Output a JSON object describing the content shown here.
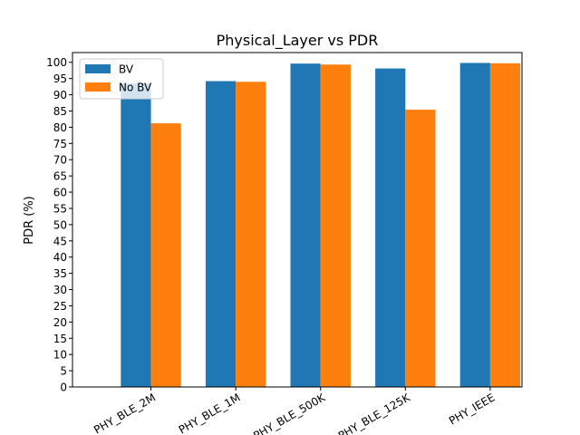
{
  "chart_data": {
    "type": "bar",
    "title": "Physical_Layer vs PDR",
    "xlabel": "",
    "ylabel": "PDR (%)",
    "categories": [
      "PHY_BLE_2M",
      "PHY_BLE_1M",
      "PHY_BLE_500K",
      "PHY_BLE_125K",
      "PHY_IEEE"
    ],
    "series": [
      {
        "name": "BV",
        "color": "#1f77b4",
        "values": [
          93.5,
          94.2,
          99.6,
          98.1,
          99.8
        ]
      },
      {
        "name": "No BV",
        "color": "#ff7f0e",
        "values": [
          81.2,
          94.0,
          99.3,
          85.4,
          99.7
        ]
      }
    ],
    "ylim": [
      0,
      103
    ],
    "yticks": [
      0,
      5,
      10,
      15,
      20,
      25,
      30,
      35,
      40,
      45,
      50,
      55,
      60,
      65,
      70,
      75,
      80,
      85,
      90,
      95,
      100
    ],
    "grid": false,
    "legend_position": "top-left"
  }
}
